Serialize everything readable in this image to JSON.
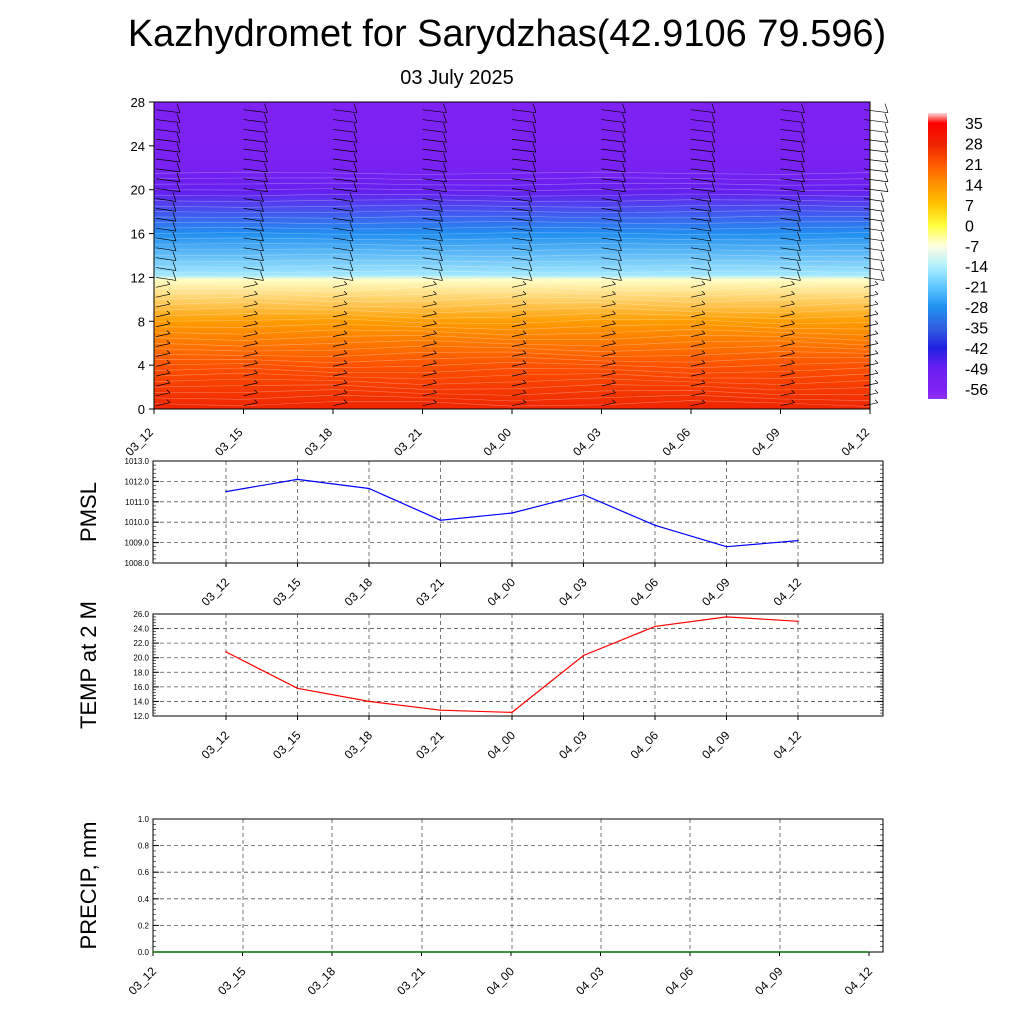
{
  "header": {
    "title": "Kazhydromet for Sarydzhas(42.9106 79.596)",
    "date": "03 July 2025"
  },
  "colors": {
    "pmsl_line": "#0000ff",
    "temp_line": "#ff0000",
    "precip_line": "#007000",
    "frame": "#000000",
    "grid": "#808080"
  },
  "chart_data": [
    {
      "type": "heatmap",
      "name": "temperature-profile",
      "time_labels": [
        "03_12",
        "03_15",
        "03_18",
        "03_21",
        "04_00",
        "04_03",
        "04_06",
        "04_09",
        "04_12"
      ],
      "y_ticks": [
        "0",
        "4",
        "8",
        "12",
        "16",
        "20",
        "24",
        "28"
      ],
      "ylim": [
        0,
        28
      ],
      "colorbar_labels": [
        "35",
        "28",
        "21",
        "14",
        "7",
        "0",
        "-7",
        "-14",
        "-21",
        "-28",
        "-35",
        "-42",
        "-49",
        "-56"
      ],
      "colorbar_range": [
        -60,
        38
      ],
      "vertical_temperature_bands": [
        {
          "height": 0,
          "value": 30
        },
        {
          "height": 4,
          "value": 24
        },
        {
          "height": 8,
          "value": 14
        },
        {
          "height": 11.8,
          "value": -6
        },
        {
          "height": 12.2,
          "value": -16
        },
        {
          "height": 16,
          "value": -30
        },
        {
          "height": 19.8,
          "value": -52
        },
        {
          "height": 22,
          "value": -58
        },
        {
          "height": 28,
          "value": -60
        }
      ],
      "wind_barb_times": [
        "03_12",
        "03_15",
        "03_18",
        "03_21",
        "04_00",
        "04_03",
        "04_06",
        "04_09",
        "04_12"
      ]
    },
    {
      "type": "line",
      "name": "PMSL",
      "ylabel": "PMSL",
      "categories": [
        "03_12",
        "03_15",
        "03_18",
        "03_21",
        "04_00",
        "04_03",
        "04_06",
        "04_09",
        "04_12"
      ],
      "values": [
        1011.5,
        1012.1,
        1011.65,
        1010.1,
        1010.45,
        1011.35,
        1009.85,
        1008.8,
        1009.1
      ],
      "ylim": [
        1008.0,
        1013.0
      ],
      "y_ticks": [
        "1008.0",
        "1009.0",
        "1010.0",
        "1011.0",
        "1012.0",
        "1013.0"
      ],
      "grid": true
    },
    {
      "type": "line",
      "name": "TEMP at 2 M",
      "ylabel": "TEMP at 2 M",
      "categories": [
        "03_12",
        "03_15",
        "03_18",
        "03_21",
        "04_00",
        "04_03",
        "04_06",
        "04_09",
        "04_12"
      ],
      "values": [
        20.8,
        15.8,
        14.0,
        12.8,
        12.5,
        20.3,
        24.3,
        25.6,
        25.0
      ],
      "ylim": [
        12.0,
        26.0
      ],
      "y_ticks": [
        "12.0",
        "14.0",
        "16.0",
        "18.0",
        "20.0",
        "22.0",
        "24.0",
        "26.0"
      ],
      "grid": true
    },
    {
      "type": "line",
      "name": "PRECIP, mm",
      "ylabel": "PRECIP, mm",
      "categories": [
        "03_12",
        "03_15",
        "03_18",
        "03_21",
        "04_00",
        "04_03",
        "04_06",
        "04_09",
        "04_12"
      ],
      "values": [
        0,
        0,
        0,
        0,
        0,
        0,
        0,
        0,
        0
      ],
      "ylim": [
        0.0,
        1.0
      ],
      "y_ticks": [
        "0.0",
        "0.2",
        "0.4",
        "0.6",
        "0.8",
        "1.0"
      ],
      "grid": true
    }
  ]
}
